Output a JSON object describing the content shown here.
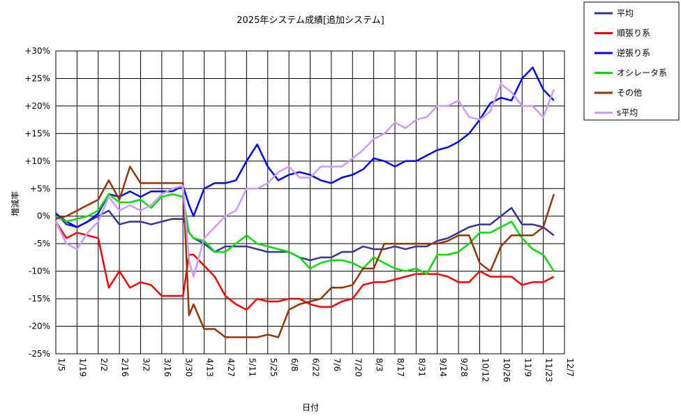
{
  "chart_data": {
    "type": "line",
    "title": "2025年システム成績[追加システム]",
    "xlabel": "日付",
    "ylabel": "増減率",
    "x_ticks": [
      "1/5",
      "1/19",
      "2/2",
      "2/16",
      "3/2",
      "3/16",
      "3/30",
      "4/13",
      "4/27",
      "5/11",
      "5/25",
      "6/8",
      "6/22",
      "7/6",
      "7/20",
      "8/3",
      "8/17",
      "8/31",
      "9/14",
      "9/28",
      "10/12",
      "10/26",
      "11/9",
      "11/23",
      "12/7"
    ],
    "y_ticks": [
      "-25%",
      "-20%",
      "-15%",
      "-10%",
      "-5%",
      "0%",
      "+5%",
      "+10%",
      "+15%",
      "+20%",
      "+25%",
      "+30%"
    ],
    "xlim": [
      "1/5",
      "12/7"
    ],
    "ylim": [
      -25,
      30
    ],
    "grid": true,
    "legend_position": "top-right outside",
    "x": [
      "1/5",
      "1/12",
      "1/19",
      "1/26",
      "2/2",
      "2/9",
      "2/16",
      "2/23",
      "3/2",
      "3/9",
      "3/16",
      "3/23",
      "3/30",
      "4/3",
      "4/6",
      "4/13",
      "4/20",
      "4/27",
      "5/4",
      "5/11",
      "5/18",
      "5/25",
      "6/1",
      "6/8",
      "6/15",
      "6/22",
      "6/29",
      "7/6",
      "7/13",
      "7/20",
      "7/27",
      "8/3",
      "8/10",
      "8/17",
      "8/24",
      "8/31",
      "9/7",
      "9/14",
      "9/21",
      "9/28",
      "10/5",
      "10/12",
      "10/19",
      "10/26",
      "11/2",
      "11/9",
      "11/16",
      "11/23",
      "11/30"
    ],
    "series": [
      {
        "name": "平均",
        "color": "#333399",
        "values": [
          0.5,
          -1.5,
          -2,
          -1,
          0,
          1,
          -1.5,
          -1,
          -1,
          -1.5,
          -1,
          -0.5,
          -0.5,
          -3,
          -4,
          -5,
          -6.5,
          -5.5,
          -5.5,
          -5.5,
          -6,
          -6.5,
          -6.5,
          -6.5,
          -7.5,
          -8,
          -7.5,
          -7.5,
          -6.5,
          -6.5,
          -5.5,
          -6,
          -6,
          -5.5,
          -6,
          -5.5,
          -5.5,
          -4.5,
          -4,
          -3,
          -2,
          -1.5,
          -1.5,
          0,
          1.5,
          -1.5,
          -1.5,
          -2,
          -3.5
        ]
      },
      {
        "name": "順張り系",
        "color": "#ff0000",
        "values": [
          -1,
          -4,
          -3,
          -3.5,
          -4,
          -13,
          -10,
          -13,
          -12,
          -12.5,
          -14.5,
          -14.5,
          -14.5,
          -7,
          -7,
          -9,
          -11,
          -14.5,
          -16,
          -17,
          -15,
          -15.5,
          -15.5,
          -15,
          -15,
          -16,
          -16.5,
          -16.5,
          -15.5,
          -15,
          -12.5,
          -12,
          -12,
          -11.5,
          -11,
          -10.5,
          -10.5,
          -10.5,
          -11,
          -12,
          -12,
          -10,
          -11,
          -11,
          -11,
          -12.5,
          -12,
          -12,
          -11
        ]
      },
      {
        "name": "逆張り系",
        "color": "#0000ff",
        "values": [
          0.5,
          -1,
          -2,
          -1,
          0.5,
          4,
          3.5,
          4.5,
          3.5,
          4.5,
          4.5,
          4.5,
          5.5,
          2,
          0,
          5,
          6,
          6,
          6.5,
          10,
          13,
          9,
          6.5,
          7.5,
          8,
          7.5,
          6.5,
          6,
          7,
          7.5,
          8.5,
          10.5,
          10,
          9,
          10,
          10,
          11,
          12,
          12.5,
          13.5,
          15,
          17.5,
          20.5,
          21.5,
          21,
          25,
          27,
          23,
          21
        ]
      },
      {
        "name": "オシレータ系",
        "color": "#00dd00",
        "values": [
          0,
          -1,
          -0.5,
          0,
          1,
          4,
          2.5,
          2.5,
          3,
          1.5,
          3.5,
          4,
          3.5,
          -3,
          -4,
          -4.5,
          -6.5,
          -6.5,
          -5,
          -3.5,
          -5,
          -5.5,
          -6,
          -6.5,
          -7.5,
          -9.5,
          -8.5,
          -8,
          -8,
          -8.5,
          -9.5,
          -7.5,
          -8.5,
          -9.5,
          -10,
          -9.5,
          -10.5,
          -7,
          -7,
          -6.5,
          -5,
          -3,
          -3,
          -2,
          -1,
          -4,
          -6,
          -7,
          -10
        ]
      },
      {
        "name": "その他",
        "color": "#993300",
        "values": [
          -0.5,
          0,
          1,
          2,
          3,
          6.5,
          3,
          9,
          6,
          6,
          6,
          6,
          6,
          -18,
          -16,
          -20.5,
          -20.5,
          -22,
          -22,
          -22,
          -22,
          -21.5,
          -22,
          -17,
          -16,
          -15.5,
          -15,
          -13,
          -13,
          -12.5,
          -9.5,
          -9.5,
          -5,
          -5,
          -5,
          -5,
          -5,
          -5,
          -4.5,
          -3.5,
          -3.5,
          -8.5,
          -10,
          -5.5,
          -3.5,
          -3.5,
          -3.5,
          -2,
          4
        ]
      },
      {
        "name": "s平均",
        "color": "#cc99ff",
        "values": [
          -1,
          -5,
          -6,
          -3,
          -1,
          3.5,
          1,
          2,
          1,
          2,
          4,
          5,
          5.5,
          -8,
          -11,
          -4,
          -2,
          0,
          1,
          5,
          5,
          6,
          8,
          9,
          7,
          7,
          9,
          9,
          9,
          10.5,
          12,
          14,
          15,
          17,
          16,
          17.5,
          18,
          20,
          20,
          21,
          18,
          17.5,
          19,
          24,
          22.5,
          20,
          20,
          18,
          23
        ]
      }
    ]
  }
}
